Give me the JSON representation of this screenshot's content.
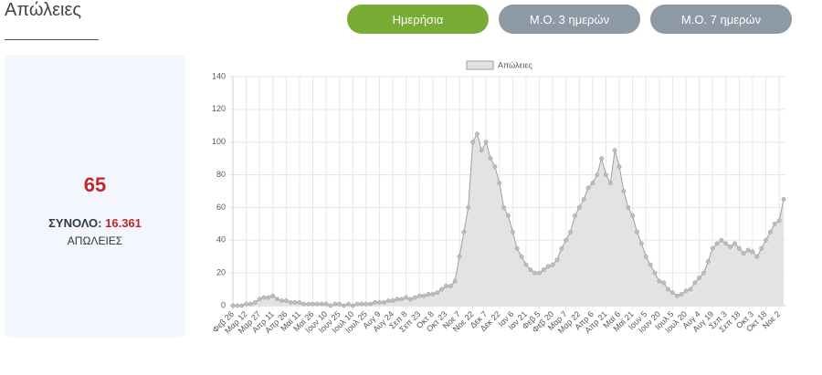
{
  "header": {
    "title": "Απώλειες"
  },
  "buttons": [
    "Ημερήσια",
    "Μ.Ο. 3 ημερών",
    "Μ.Ο. 7 ημερών"
  ],
  "summary": {
    "today": "65",
    "total_label": "ΣΥΝΟΛΟ:",
    "total": "16.361",
    "unit": "ΑΠΩΛΕΙΕΣ"
  },
  "chart_data": {
    "type": "area",
    "categories": [
      "Φεβ 26",
      null,
      null,
      "Μαρ 12",
      null,
      null,
      "Μαρ 27",
      null,
      null,
      "Απρ 11",
      null,
      null,
      "Απρ 26",
      null,
      null,
      "Μαϊ 11",
      null,
      null,
      "Μαϊ 26",
      null,
      null,
      "Ιουν 10",
      null,
      null,
      "Ιουν 25",
      null,
      null,
      "Ιουλ 10",
      null,
      null,
      "Ιουλ 25",
      null,
      null,
      "Αυγ 9",
      null,
      null,
      "Αυγ 24",
      null,
      null,
      "Σεπ 8",
      null,
      null,
      "Σεπ 23",
      null,
      null,
      "Οκτ 8",
      null,
      null,
      "Οκτ 23",
      null,
      null,
      "Νοε 7",
      null,
      null,
      "Νοε 22",
      null,
      null,
      "Δεκ 7",
      null,
      null,
      "Δεκ 22",
      null,
      null,
      "Ιαν 6",
      null,
      null,
      "Ιαν 21",
      null,
      null,
      "Φεβ 5",
      null,
      null,
      "Φεβ 20",
      null,
      null,
      "Μαρ 7",
      null,
      null,
      "Μαρ 22",
      null,
      null,
      "Απρ 6",
      null,
      null,
      "Απρ 21",
      null,
      null,
      "Μαϊ 6",
      null,
      null,
      "Μαϊ 21",
      null,
      null,
      "Ιουν 5",
      null,
      null,
      "Ιουν 20",
      null,
      null,
      "Ιουλ 5",
      null,
      null,
      "Ιουλ 20",
      null,
      null,
      "Αυγ 4",
      null,
      null,
      "Αυγ 19",
      null,
      null,
      "Σεπ 3",
      null,
      null,
      "Σεπ 18",
      null,
      null,
      "Οκτ 3",
      null,
      null,
      "Οκτ 18",
      null,
      null,
      "Νοε 2",
      null
    ],
    "series": [
      {
        "name": "Απώλειες",
        "color": "#9e9e9e",
        "fill": "#e3e3e3",
        "values": [
          0,
          0,
          0,
          1,
          1,
          2,
          4,
          5,
          5,
          6,
          4,
          3,
          3,
          2,
          2,
          2,
          1,
          1,
          1,
          1,
          1,
          1,
          0,
          1,
          1,
          0,
          1,
          0,
          1,
          1,
          1,
          1,
          2,
          2,
          2,
          3,
          3,
          4,
          4,
          5,
          4,
          5,
          6,
          6,
          7,
          7,
          8,
          10,
          12,
          12,
          15,
          30,
          45,
          60,
          100,
          105,
          95,
          100,
          90,
          85,
          75,
          60,
          55,
          45,
          35,
          30,
          25,
          22,
          20,
          20,
          22,
          24,
          25,
          28,
          35,
          40,
          45,
          55,
          60,
          65,
          72,
          75,
          80,
          90,
          80,
          75,
          95,
          85,
          70,
          60,
          55,
          45,
          38,
          30,
          25,
          20,
          15,
          14,
          10,
          8,
          6,
          7,
          9,
          10,
          14,
          17,
          20,
          27,
          35,
          38,
          40,
          38,
          36,
          38,
          35,
          32,
          34,
          33,
          30,
          35,
          40,
          45,
          50,
          52,
          65
        ]
      }
    ],
    "ylim": [
      0,
      140
    ],
    "yticks": [
      0,
      20,
      40,
      60,
      80,
      100,
      120,
      140
    ],
    "grid": true,
    "legend": "top"
  }
}
